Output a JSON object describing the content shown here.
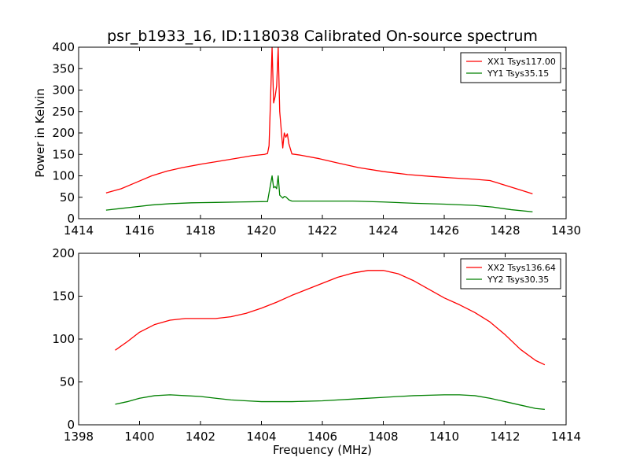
{
  "chart_data": [
    {
      "type": "line",
      "title": "psr_b1933_16, ID:118038 Calibrated On-source spectrum",
      "xlabel": "",
      "ylabel": "Power in Kelvin",
      "xlim": [
        1414,
        1430
      ],
      "ylim": [
        0,
        400
      ],
      "xticks": [
        "1414",
        "1416",
        "1418",
        "1420",
        "1422",
        "1424",
        "1426",
        "1428",
        "1430"
      ],
      "yticks": [
        "0",
        "50",
        "100",
        "150",
        "200",
        "250",
        "300",
        "350",
        "400"
      ],
      "legend_position": "top-right",
      "series": [
        {
          "name": "XX1 Tsys117.00",
          "color": "#ff0000",
          "points": [
            [
              1414.9,
              60
            ],
            [
              1415.4,
              70
            ],
            [
              1415.9,
              85
            ],
            [
              1416.4,
              100
            ],
            [
              1416.9,
              111
            ],
            [
              1417.4,
              119
            ],
            [
              1418.0,
              127
            ],
            [
              1418.6,
              134
            ],
            [
              1419.2,
              141
            ],
            [
              1419.7,
              147
            ],
            [
              1420.1,
              150
            ],
            [
              1420.2,
              152
            ],
            [
              1420.25,
              170
            ],
            [
              1420.3,
              280
            ],
            [
              1420.35,
              400
            ],
            [
              1420.4,
              270
            ],
            [
              1420.45,
              285
            ],
            [
              1420.5,
              310
            ],
            [
              1420.55,
              400
            ],
            [
              1420.6,
              250
            ],
            [
              1420.7,
              165
            ],
            [
              1420.75,
              200
            ],
            [
              1420.8,
              190
            ],
            [
              1420.85,
              198
            ],
            [
              1420.9,
              175
            ],
            [
              1421.0,
              151
            ],
            [
              1421.3,
              148
            ],
            [
              1421.9,
              140
            ],
            [
              1422.5,
              130
            ],
            [
              1423.2,
              119
            ],
            [
              1424.0,
              110
            ],
            [
              1424.8,
              103
            ],
            [
              1425.5,
              99
            ],
            [
              1426.3,
              95
            ],
            [
              1427.0,
              92
            ],
            [
              1427.5,
              89
            ],
            [
              1428.0,
              78
            ],
            [
              1428.5,
              67
            ],
            [
              1428.9,
              58
            ]
          ]
        },
        {
          "name": "YY1 Tsys35.15",
          "color": "#008000",
          "points": [
            [
              1414.9,
              20
            ],
            [
              1415.4,
              24
            ],
            [
              1415.9,
              28
            ],
            [
              1416.4,
              32
            ],
            [
              1417.0,
              35
            ],
            [
              1417.7,
              37
            ],
            [
              1418.5,
              38
            ],
            [
              1419.3,
              39
            ],
            [
              1420.2,
              40
            ],
            [
              1420.25,
              60
            ],
            [
              1420.35,
              100
            ],
            [
              1420.4,
              72
            ],
            [
              1420.45,
              75
            ],
            [
              1420.5,
              70
            ],
            [
              1420.55,
              100
            ],
            [
              1420.6,
              55
            ],
            [
              1420.7,
              48
            ],
            [
              1420.75,
              52
            ],
            [
              1420.8,
              51
            ],
            [
              1420.9,
              44
            ],
            [
              1421.0,
              41
            ],
            [
              1422.0,
              41
            ],
            [
              1423.0,
              41
            ],
            [
              1424.0,
              39
            ],
            [
              1425.0,
              36
            ],
            [
              1426.0,
              34
            ],
            [
              1427.0,
              31
            ],
            [
              1427.6,
              27
            ],
            [
              1428.2,
              21
            ],
            [
              1428.9,
              16
            ]
          ]
        }
      ]
    },
    {
      "type": "line",
      "title": "",
      "xlabel": "Frequency (MHz)",
      "ylabel": "",
      "xlim": [
        1398,
        1414
      ],
      "ylim": [
        0,
        200
      ],
      "xticks": [
        "1398",
        "1400",
        "1402",
        "1404",
        "1406",
        "1408",
        "1410",
        "1412",
        "1414"
      ],
      "yticks": [
        "0",
        "50",
        "100",
        "150",
        "200"
      ],
      "legend_position": "top-right",
      "series": [
        {
          "name": "XX2 Tsys136.64",
          "color": "#ff0000",
          "points": [
            [
              1399.2,
              87
            ],
            [
              1399.6,
              97
            ],
            [
              1400.0,
              108
            ],
            [
              1400.5,
              117
            ],
            [
              1401.0,
              122
            ],
            [
              1401.5,
              124
            ],
            [
              1402.0,
              124
            ],
            [
              1402.5,
              124
            ],
            [
              1403.0,
              126
            ],
            [
              1403.5,
              130
            ],
            [
              1404.0,
              136
            ],
            [
              1404.5,
              143
            ],
            [
              1405.0,
              151
            ],
            [
              1405.5,
              158
            ],
            [
              1406.0,
              165
            ],
            [
              1406.5,
              172
            ],
            [
              1407.0,
              177
            ],
            [
              1407.5,
              180
            ],
            [
              1408.0,
              180
            ],
            [
              1408.5,
              176
            ],
            [
              1409.0,
              168
            ],
            [
              1409.5,
              158
            ],
            [
              1410.0,
              148
            ],
            [
              1410.5,
              140
            ],
            [
              1411.0,
              131
            ],
            [
              1411.5,
              120
            ],
            [
              1412.0,
              105
            ],
            [
              1412.5,
              88
            ],
            [
              1413.0,
              75
            ],
            [
              1413.3,
              70
            ]
          ]
        },
        {
          "name": "YY2 Tsys30.35",
          "color": "#008000",
          "points": [
            [
              1399.2,
              24
            ],
            [
              1399.6,
              27
            ],
            [
              1400.0,
              31
            ],
            [
              1400.5,
              34
            ],
            [
              1401.0,
              35
            ],
            [
              1401.5,
              34
            ],
            [
              1402.0,
              33
            ],
            [
              1402.5,
              31
            ],
            [
              1403.0,
              29
            ],
            [
              1403.5,
              28
            ],
            [
              1404.0,
              27
            ],
            [
              1405.0,
              27
            ],
            [
              1406.0,
              28
            ],
            [
              1407.0,
              30
            ],
            [
              1408.0,
              32
            ],
            [
              1409.0,
              34
            ],
            [
              1410.0,
              35
            ],
            [
              1410.5,
              35
            ],
            [
              1411.0,
              34
            ],
            [
              1411.5,
              31
            ],
            [
              1412.0,
              27
            ],
            [
              1412.5,
              23
            ],
            [
              1413.0,
              19
            ],
            [
              1413.3,
              18
            ]
          ]
        }
      ]
    }
  ]
}
